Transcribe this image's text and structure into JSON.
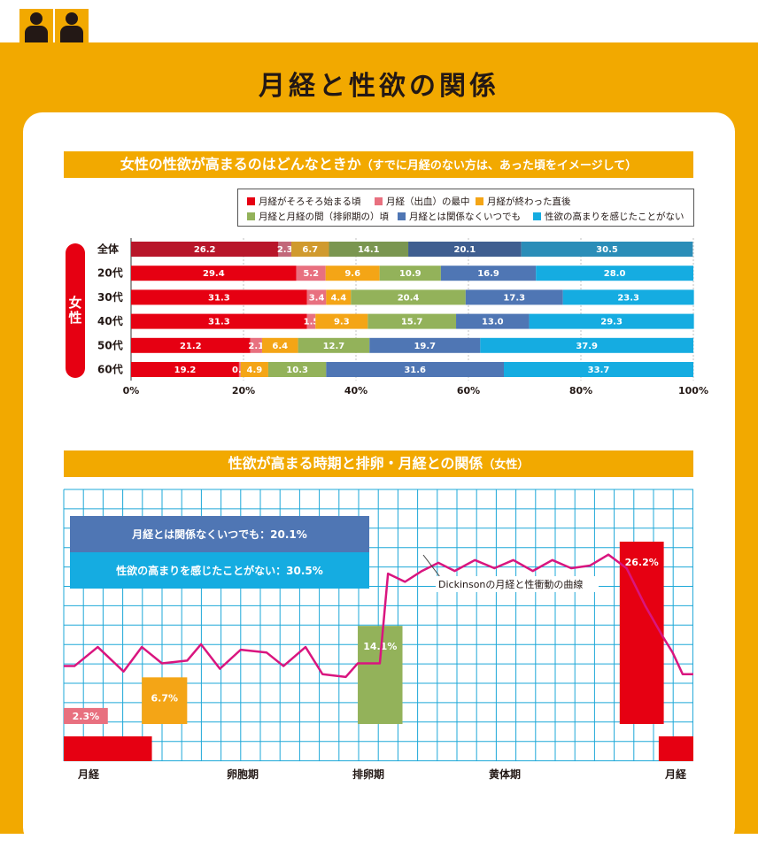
{
  "header": {
    "title": "月経と性欲の関係",
    "icons": [
      "person-icon",
      "person-icon"
    ]
  },
  "section1": {
    "title": "女性の性欲が高まるのはどんなときか",
    "subtitle": "（すでに月経のない方は、あった頃をイメージして）",
    "side_label_1": "女",
    "side_label_2": "性"
  },
  "section2": {
    "title": "性欲が高まる時期と排卵・月経との関係",
    "subtitle": "（女性）"
  },
  "colors": {
    "orange": "#F2A900",
    "red": "#E60012",
    "pink": "#E8707F",
    "yellow": "#F4A516",
    "green": "#93B25A",
    "blue": "#4F76B4",
    "cyan": "#15ACE1",
    "grid": "#1EA8D8",
    "magenta": "#D9157F"
  },
  "chart_data": [
    {
      "type": "bar",
      "orientation": "horizontal",
      "stacked": true,
      "categories": [
        "全体",
        "20代",
        "30代",
        "40代",
        "50代",
        "60代"
      ],
      "series": [
        {
          "name": "月経がそろそろ始まる頃",
          "values": [
            26.2,
            29.4,
            31.3,
            31.3,
            21.2,
            19.2
          ]
        },
        {
          "name": "月経（出血）の最中",
          "values": [
            2.3,
            5.2,
            3.4,
            1.5,
            2.1,
            0.3
          ]
        },
        {
          "name": "月経が終わった直後",
          "values": [
            6.7,
            9.6,
            4.4,
            9.3,
            6.4,
            4.9
          ]
        },
        {
          "name": "月経と月経の間（排卵期の）頃",
          "values": [
            14.1,
            10.9,
            20.4,
            15.7,
            12.7,
            10.3
          ]
        },
        {
          "name": "月経とは関係なくいつでも",
          "values": [
            20.1,
            16.9,
            17.3,
            13.0,
            19.7,
            31.6
          ]
        },
        {
          "name": "性欲の高まりを感じたことがない",
          "values": [
            30.5,
            28.0,
            23.3,
            29.3,
            37.9,
            33.7
          ]
        }
      ],
      "xticks": [
        "0%",
        "20%",
        "40%",
        "60%",
        "80%",
        "100%"
      ],
      "xlim": [
        0,
        100
      ]
    },
    {
      "type": "line",
      "title": "性欲が高まる時期と排卵・月経との関係（女性）",
      "line_label": "Dickinsonの月経と性衝動の曲線",
      "phase_labels": [
        "月経",
        "卵胞期",
        "排卵期",
        "黄体期",
        "月経"
      ],
      "phase_positions": [
        0,
        25,
        50,
        75,
        100
      ],
      "line_x": [
        0,
        1.7,
        5.4,
        9.5,
        12.4,
        15.6,
        19.6,
        21.8,
        24.8,
        28.1,
        32.2,
        34.9,
        38.4,
        41.1,
        44.8,
        46.7,
        50.2,
        51.5,
        54.2,
        56.9,
        59.5,
        62.1,
        65.3,
        68.4,
        71.4,
        74.5,
        77.6,
        80.6,
        83.6,
        86.5,
        89.4,
        92.4,
        95.1,
        96.7,
        98.3,
        100
      ],
      "line_y": [
        35,
        35,
        42,
        33,
        42,
        36,
        37,
        43,
        34,
        41,
        40,
        35,
        42,
        32,
        31,
        36,
        36,
        69,
        66,
        70,
        73,
        70,
        74,
        71,
        74,
        70,
        74,
        71,
        72,
        76,
        71,
        57,
        46,
        40,
        32,
        32
      ],
      "ylim": [
        0,
        100
      ],
      "bars": [
        {
          "label": "2.3%",
          "value": 2.3,
          "x_start": 0,
          "x_end": 7
        },
        {
          "label": "6.7%",
          "value": 6.7,
          "x_start": 12.4,
          "x_end": 19.6
        },
        {
          "label": "14.1%",
          "value": 14.1,
          "x_start": 46.7,
          "x_end": 53.8
        },
        {
          "label": "26.2%",
          "value": 26.2,
          "x_start": 88.3,
          "x_end": 95.3
        }
      ],
      "menstruation_blocks": [
        {
          "x_start": 0,
          "x_end": 14
        },
        {
          "x_start": 94.5,
          "x_end": 100
        }
      ],
      "info_boxes": [
        {
          "text": "月経とは関係なくいつでも：20.1%",
          "value": 20.1
        },
        {
          "text": "性欲の高まりを感じたことがない：30.5%",
          "value": 30.5
        }
      ]
    }
  ]
}
